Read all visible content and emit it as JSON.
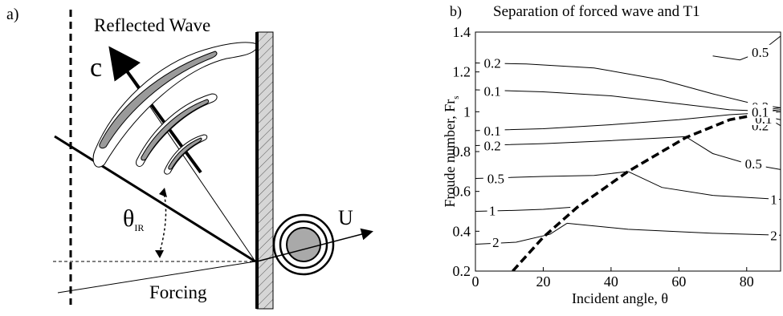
{
  "panel_a": {
    "label": "a)",
    "reflected_label": "Reflected Wave",
    "c_label": "c",
    "u_label": "U",
    "theta_label": "θ",
    "theta_sub": "IR",
    "forcing_label": "Forcing",
    "colors": {
      "shade": "#9a9a9a",
      "wall_hatch": "#cfcfcf",
      "cylinder": "#a9a9a9"
    }
  },
  "panel_b": {
    "label": "b)",
    "chart_data": {
      "type": "contour",
      "title": "Separation of forced wave and T1",
      "xlabel": "Incident angle, θ",
      "ylabel": "Froude number, Fr",
      "ylabel_sub": "s",
      "xlim": [
        0,
        90
      ],
      "ylim": [
        0.2,
        1.4
      ],
      "x_ticks": [
        0,
        20,
        40,
        60,
        80
      ],
      "y_ticks": [
        0.2,
        0.4,
        0.6,
        0.8,
        1,
        1.2,
        1.4
      ],
      "y_tick_labels": [
        "0.2",
        "0.4",
        "0.6",
        "0.8",
        "1",
        "1.2",
        "1.4"
      ],
      "boundary_curve": {
        "style": "dashed",
        "points": [
          [
            11,
            0.2
          ],
          [
            20,
            0.37
          ],
          [
            30,
            0.52
          ],
          [
            45,
            0.7
          ],
          [
            62,
            0.87
          ],
          [
            75,
            0.96
          ],
          [
            83,
            0.985
          ],
          [
            88,
            0.99
          ]
        ]
      },
      "contours": [
        {
          "level": "0.2",
          "points": [
            [
              0,
              1.245
            ],
            [
              15,
              1.24
            ],
            [
              35,
              1.22
            ],
            [
              55,
              1.16
            ],
            [
              70,
              1.09
            ],
            [
              82,
              1.04
            ],
            [
              90,
              1.02
            ]
          ],
          "label_at": [
            5,
            1.245
          ]
        },
        {
          "level": "0.1",
          "points": [
            [
              0,
              1.11
            ],
            [
              20,
              1.1
            ],
            [
              40,
              1.08
            ],
            [
              60,
              1.04
            ],
            [
              75,
              1.01
            ],
            [
              90,
              1.0
            ]
          ],
          "label_at": [
            5,
            1.105
          ]
        },
        {
          "level": "0.1",
          "points": [
            [
              0,
              0.905
            ],
            [
              20,
              0.915
            ],
            [
              40,
              0.935
            ],
            [
              60,
              0.96
            ],
            [
              75,
              0.985
            ],
            [
              90,
              1.0
            ]
          ],
          "label_at": [
            5,
            0.905
          ]
        },
        {
          "level": "0.2",
          "points": [
            [
              0,
              0.83
            ],
            [
              20,
              0.84
            ],
            [
              40,
              0.855
            ],
            [
              62,
              0.875
            ]
          ],
          "label_at": [
            5,
            0.83
          ]
        },
        {
          "level": "0.5",
          "points": [
            [
              0,
              0.665
            ],
            [
              20,
              0.675
            ],
            [
              35,
              0.68
            ],
            [
              45,
              0.7
            ]
          ],
          "label_at": [
            6,
            0.665
          ]
        },
        {
          "level": "1",
          "points": [
            [
              0,
              0.5
            ],
            [
              12,
              0.505
            ],
            [
              20,
              0.51
            ],
            [
              28,
              0.52
            ]
          ],
          "label_at": [
            5,
            0.505
          ]
        },
        {
          "level": "2",
          "points": [
            [
              0,
              0.335
            ],
            [
              12,
              0.345
            ],
            [
              22,
              0.385
            ],
            [
              27,
              0.44
            ]
          ],
          "label_at": [
            6,
            0.345
          ]
        },
        {
          "level": "0.5",
          "points": [
            [
              90,
              1.38
            ],
            [
              84,
              1.3
            ],
            [
              78,
              1.26
            ],
            [
              70,
              1.28
            ]
          ],
          "label_at": [
            84,
            1.3
          ]
        },
        {
          "level": "0.5",
          "points": [
            [
              62,
              0.875
            ],
            [
              70,
              0.79
            ],
            [
              80,
              0.74
            ],
            [
              90,
              0.71
            ]
          ],
          "label_at": [
            82,
            0.74
          ]
        },
        {
          "level": "1",
          "points": [
            [
              45,
              0.7
            ],
            [
              55,
              0.62
            ],
            [
              70,
              0.58
            ],
            [
              90,
              0.56
            ]
          ],
          "label_at": [
            88,
            0.56
          ]
        },
        {
          "level": "2",
          "points": [
            [
              27,
              0.44
            ],
            [
              45,
              0.41
            ],
            [
              70,
              0.39
            ],
            [
              90,
              0.38
            ]
          ],
          "label_at": [
            88,
            0.38
          ]
        },
        {
          "level": "0.2",
          "points": [
            [
              83,
              0.985
            ],
            [
              88,
              0.95
            ],
            [
              90,
              0.93
            ]
          ],
          "label_at": [
            84,
            0.93
          ]
        },
        {
          "level": "0.1",
          "points": [
            [
              83,
              0.99
            ],
            [
              86,
              0.975
            ],
            [
              90,
              0.96
            ]
          ],
          "label_at": [
            85,
            0.965
          ]
        },
        {
          "level": "0.2",
          "points": [
            [
              83,
              0.995
            ],
            [
              86,
              1.01
            ],
            [
              90,
              1.02
            ]
          ],
          "label_at": [
            84,
            1.025
          ]
        },
        {
          "level": "0.1",
          "points": [
            [
              83,
              1.0
            ],
            [
              90,
              1.01
            ]
          ],
          "label_at": [
            84,
            1.0
          ]
        }
      ]
    }
  }
}
